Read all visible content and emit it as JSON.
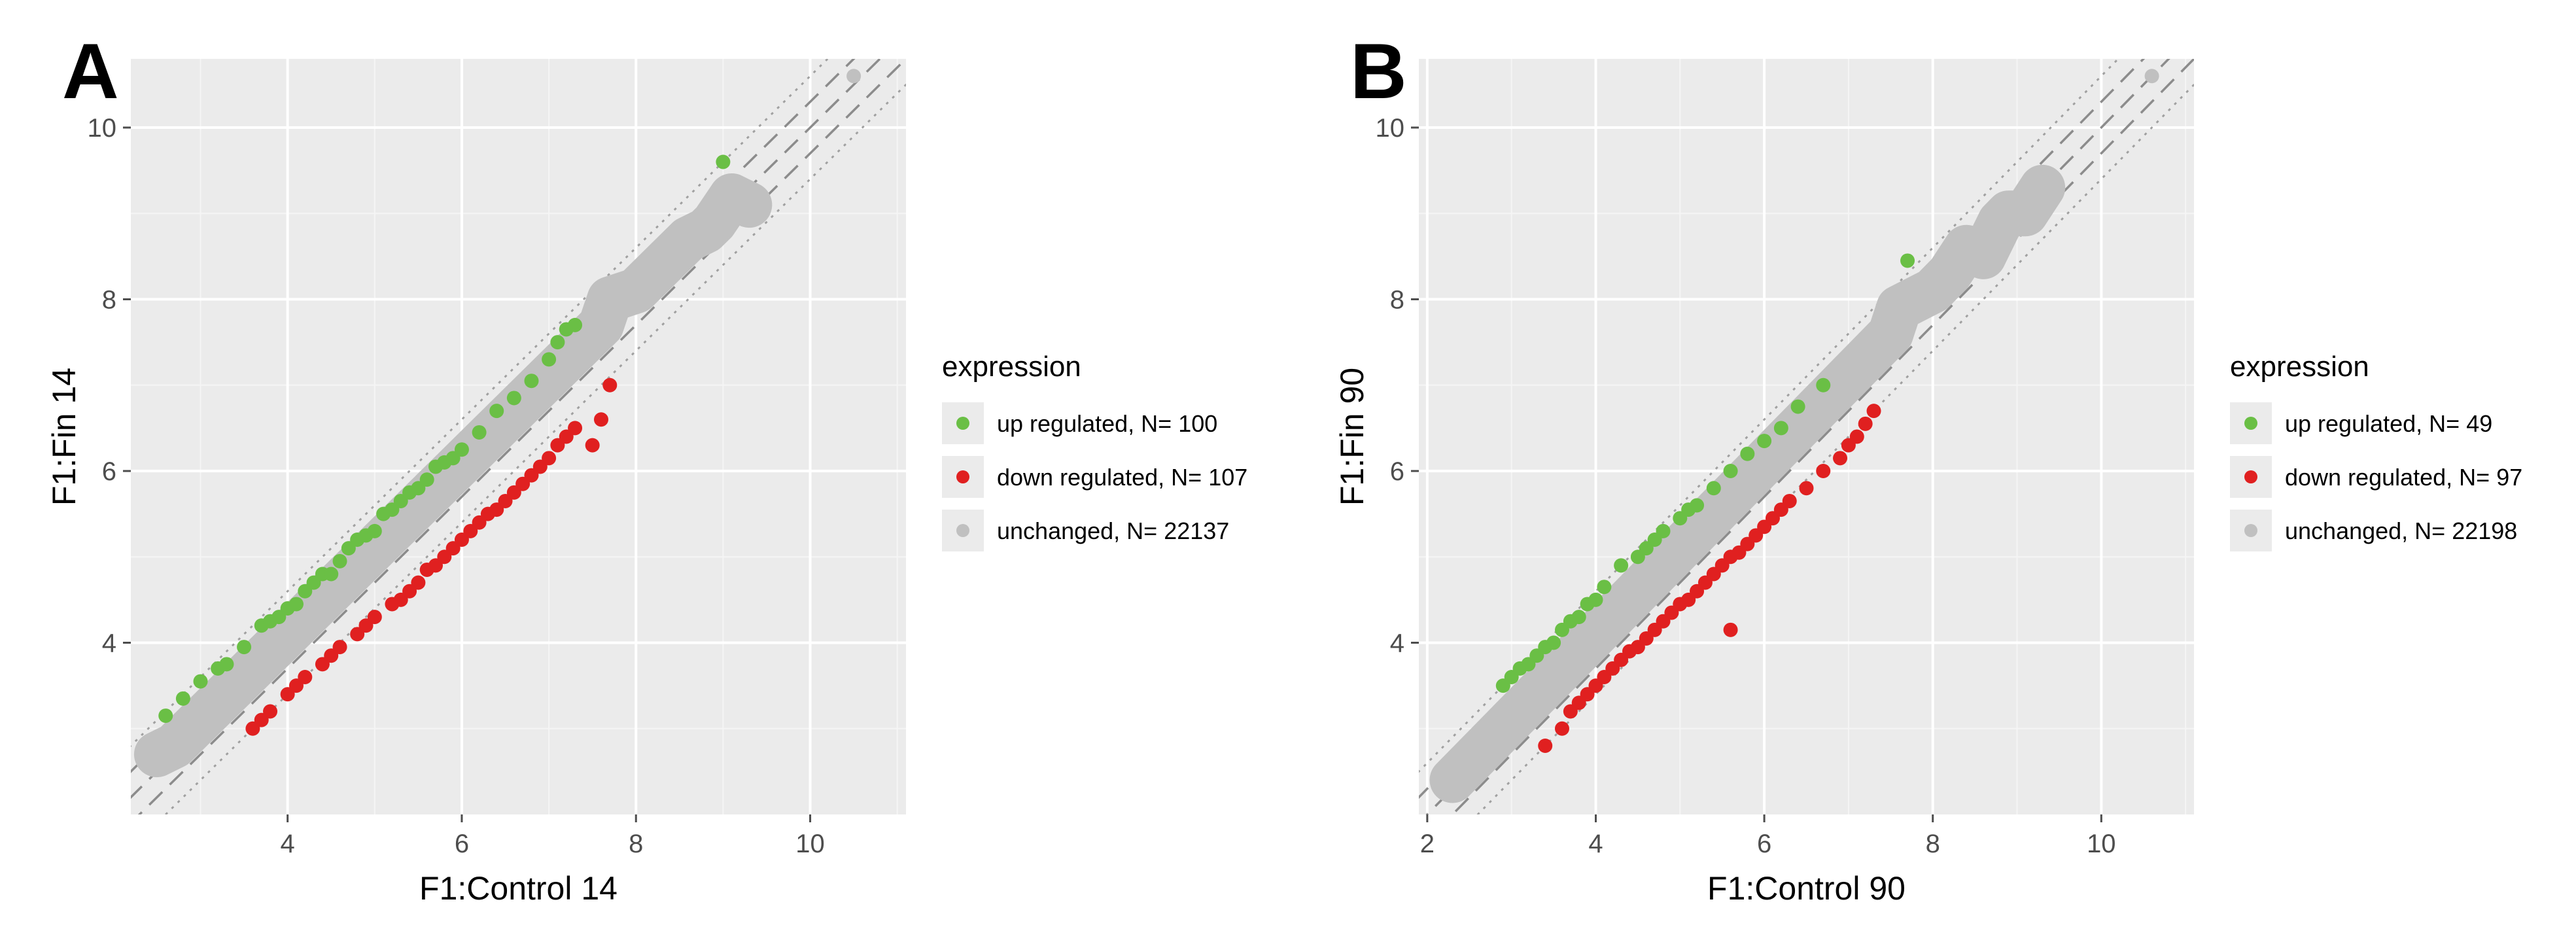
{
  "chart_data": [
    {
      "panel": "A",
      "type": "scatter",
      "xlabel": "F1:Control 14",
      "ylabel": "F1:Fin 14",
      "xlim": [
        2.2,
        11.1
      ],
      "ylim": [
        2.0,
        10.8
      ],
      "xticks": [
        4,
        6,
        8,
        10
      ],
      "yticks": [
        4,
        6,
        8,
        10
      ],
      "grid": true,
      "legend": {
        "position": "right",
        "title": "expression",
        "entries": [
          {
            "label": "up regulated, N= 100",
            "color": "#6abf45"
          },
          {
            "label": "down regulated, N= 107",
            "color": "#e02020"
          },
          {
            "label": "unchanged, N= 22137",
            "color": "#c0c0c0"
          }
        ]
      },
      "reference_lines": [
        {
          "intercept": 0,
          "style": "dashed"
        },
        {
          "intercept": 0.3,
          "style": "dashed"
        },
        {
          "intercept": -0.3,
          "style": "dashed"
        },
        {
          "intercept": 0.6,
          "style": "dotted"
        },
        {
          "intercept": -0.6,
          "style": "dotted"
        }
      ],
      "series": [
        {
          "name": "up regulated",
          "color": "#6abf45",
          "points": [
            [
              2.6,
              3.15
            ],
            [
              2.8,
              3.35
            ],
            [
              3.0,
              3.55
            ],
            [
              3.2,
              3.7
            ],
            [
              3.3,
              3.75
            ],
            [
              3.5,
              3.95
            ],
            [
              3.7,
              4.2
            ],
            [
              3.8,
              4.25
            ],
            [
              3.9,
              4.3
            ],
            [
              4.0,
              4.4
            ],
            [
              4.1,
              4.45
            ],
            [
              4.2,
              4.6
            ],
            [
              4.3,
              4.7
            ],
            [
              4.4,
              4.8
            ],
            [
              4.5,
              4.8
            ],
            [
              4.6,
              4.95
            ],
            [
              4.7,
              5.1
            ],
            [
              4.8,
              5.2
            ],
            [
              4.9,
              5.25
            ],
            [
              5.0,
              5.3
            ],
            [
              5.1,
              5.5
            ],
            [
              5.2,
              5.55
            ],
            [
              5.3,
              5.65
            ],
            [
              5.4,
              5.75
            ],
            [
              5.5,
              5.8
            ],
            [
              5.6,
              5.9
            ],
            [
              5.7,
              6.05
            ],
            [
              5.8,
              6.1
            ],
            [
              5.9,
              6.15
            ],
            [
              6.0,
              6.25
            ],
            [
              6.2,
              6.45
            ],
            [
              6.4,
              6.7
            ],
            [
              6.6,
              6.85
            ],
            [
              6.8,
              7.05
            ],
            [
              7.0,
              7.3
            ],
            [
              7.1,
              7.5
            ],
            [
              7.2,
              7.65
            ],
            [
              7.3,
              7.7
            ],
            [
              9.0,
              9.6
            ]
          ]
        },
        {
          "name": "down regulated",
          "color": "#e02020",
          "points": [
            [
              3.6,
              3.0
            ],
            [
              3.7,
              3.1
            ],
            [
              3.8,
              3.2
            ],
            [
              4.0,
              3.4
            ],
            [
              4.1,
              3.5
            ],
            [
              4.2,
              3.6
            ],
            [
              4.4,
              3.75
            ],
            [
              4.5,
              3.85
            ],
            [
              4.6,
              3.95
            ],
            [
              4.8,
              4.1
            ],
            [
              4.9,
              4.2
            ],
            [
              5.0,
              4.3
            ],
            [
              5.2,
              4.45
            ],
            [
              5.3,
              4.5
            ],
            [
              5.4,
              4.6
            ],
            [
              5.5,
              4.7
            ],
            [
              5.6,
              4.85
            ],
            [
              5.7,
              4.9
            ],
            [
              5.8,
              5.0
            ],
            [
              5.9,
              5.1
            ],
            [
              6.0,
              5.2
            ],
            [
              6.1,
              5.3
            ],
            [
              6.2,
              5.4
            ],
            [
              6.3,
              5.5
            ],
            [
              6.4,
              5.55
            ],
            [
              6.5,
              5.65
            ],
            [
              6.6,
              5.75
            ],
            [
              6.7,
              5.85
            ],
            [
              6.8,
              5.95
            ],
            [
              6.9,
              6.05
            ],
            [
              7.0,
              6.15
            ],
            [
              7.1,
              6.3
            ],
            [
              7.2,
              6.4
            ],
            [
              7.3,
              6.5
            ],
            [
              7.5,
              6.3
            ],
            [
              7.6,
              6.6
            ],
            [
              7.7,
              7.0
            ]
          ]
        },
        {
          "name": "unchanged",
          "color": "#c0c0c0",
          "points": [
            [
              2.5,
              2.7
            ],
            [
              2.7,
              2.8
            ],
            [
              2.9,
              3.0
            ],
            [
              3.0,
              3.1
            ],
            [
              3.2,
              3.3
            ],
            [
              3.4,
              3.5
            ],
            [
              3.6,
              3.7
            ],
            [
              3.8,
              3.9
            ],
            [
              4.0,
              4.1
            ],
            [
              4.2,
              4.3
            ],
            [
              4.4,
              4.5
            ],
            [
              4.6,
              4.7
            ],
            [
              4.8,
              4.9
            ],
            [
              5.0,
              5.1
            ],
            [
              5.2,
              5.3
            ],
            [
              5.4,
              5.5
            ],
            [
              5.6,
              5.7
            ],
            [
              5.8,
              5.9
            ],
            [
              6.0,
              6.1
            ],
            [
              6.2,
              6.3
            ],
            [
              6.4,
              6.5
            ],
            [
              6.6,
              6.7
            ],
            [
              6.8,
              6.9
            ],
            [
              7.0,
              7.1
            ],
            [
              7.2,
              7.3
            ],
            [
              7.4,
              7.5
            ],
            [
              7.6,
              7.7
            ],
            [
              7.7,
              8.0
            ],
            [
              8.0,
              8.1
            ],
            [
              8.2,
              8.3
            ],
            [
              8.3,
              8.4
            ],
            [
              8.5,
              8.6
            ],
            [
              8.6,
              8.7
            ],
            [
              8.8,
              8.8
            ],
            [
              8.9,
              8.9
            ],
            [
              9.1,
              9.2
            ],
            [
              9.3,
              9.1
            ],
            [
              10.5,
              10.6
            ]
          ]
        }
      ]
    },
    {
      "panel": "B",
      "type": "scatter",
      "xlabel": "F1:Control 90",
      "ylabel": "F1:Fin 90",
      "xlim": [
        1.9,
        11.1
      ],
      "ylim": [
        2.0,
        10.8
      ],
      "xticks": [
        2,
        4,
        6,
        8,
        10
      ],
      "yticks": [
        4,
        6,
        8,
        10
      ],
      "grid": true,
      "legend": {
        "position": "right",
        "title": "expression",
        "entries": [
          {
            "label": "up regulated, N= 49",
            "color": "#6abf45"
          },
          {
            "label": "down regulated, N= 97",
            "color": "#e02020"
          },
          {
            "label": "unchanged, N= 22198",
            "color": "#c0c0c0"
          }
        ]
      },
      "reference_lines": [
        {
          "intercept": 0,
          "style": "dashed"
        },
        {
          "intercept": 0.3,
          "style": "dashed"
        },
        {
          "intercept": -0.3,
          "style": "dashed"
        },
        {
          "intercept": 0.6,
          "style": "dotted"
        },
        {
          "intercept": -0.6,
          "style": "dotted"
        }
      ],
      "series": [
        {
          "name": "up regulated",
          "color": "#6abf45",
          "points": [
            [
              2.9,
              3.5
            ],
            [
              3.0,
              3.6
            ],
            [
              3.1,
              3.7
            ],
            [
              3.2,
              3.75
            ],
            [
              3.3,
              3.85
            ],
            [
              3.4,
              3.95
            ],
            [
              3.5,
              4.0
            ],
            [
              3.6,
              4.15
            ],
            [
              3.7,
              4.25
            ],
            [
              3.8,
              4.3
            ],
            [
              3.9,
              4.45
            ],
            [
              4.0,
              4.5
            ],
            [
              4.1,
              4.65
            ],
            [
              4.3,
              4.9
            ],
            [
              4.5,
              5.0
            ],
            [
              4.6,
              5.1
            ],
            [
              4.7,
              5.2
            ],
            [
              4.8,
              5.3
            ],
            [
              5.0,
              5.45
            ],
            [
              5.1,
              5.55
            ],
            [
              5.2,
              5.6
            ],
            [
              5.4,
              5.8
            ],
            [
              5.6,
              6.0
            ],
            [
              5.8,
              6.2
            ],
            [
              6.0,
              6.35
            ],
            [
              6.2,
              6.5
            ],
            [
              6.4,
              6.75
            ],
            [
              6.7,
              7.0
            ],
            [
              7.7,
              8.45
            ]
          ]
        },
        {
          "name": "down regulated",
          "color": "#e02020",
          "points": [
            [
              3.4,
              2.8
            ],
            [
              3.6,
              3.0
            ],
            [
              3.7,
              3.2
            ],
            [
              3.8,
              3.3
            ],
            [
              3.9,
              3.4
            ],
            [
              4.0,
              3.5
            ],
            [
              4.1,
              3.6
            ],
            [
              4.2,
              3.7
            ],
            [
              4.3,
              3.8
            ],
            [
              4.4,
              3.9
            ],
            [
              4.5,
              3.95
            ],
            [
              4.6,
              4.05
            ],
            [
              4.7,
              4.15
            ],
            [
              4.8,
              4.25
            ],
            [
              4.9,
              4.35
            ],
            [
              5.0,
              4.45
            ],
            [
              5.1,
              4.5
            ],
            [
              5.2,
              4.6
            ],
            [
              5.3,
              4.7
            ],
            [
              5.4,
              4.8
            ],
            [
              5.5,
              4.9
            ],
            [
              5.6,
              5.0
            ],
            [
              5.7,
              5.05
            ],
            [
              5.8,
              5.15
            ],
            [
              5.9,
              5.25
            ],
            [
              6.0,
              5.35
            ],
            [
              6.1,
              5.45
            ],
            [
              6.2,
              5.55
            ],
            [
              6.3,
              5.65
            ],
            [
              6.5,
              5.8
            ],
            [
              6.7,
              6.0
            ],
            [
              6.9,
              6.15
            ],
            [
              7.0,
              6.3
            ],
            [
              7.1,
              6.4
            ],
            [
              7.2,
              6.55
            ],
            [
              7.3,
              6.7
            ],
            [
              5.6,
              4.15
            ]
          ]
        },
        {
          "name": "unchanged",
          "color": "#c0c0c0",
          "points": [
            [
              2.3,
              2.4
            ],
            [
              2.5,
              2.6
            ],
            [
              2.7,
              2.8
            ],
            [
              2.9,
              3.0
            ],
            [
              3.1,
              3.2
            ],
            [
              3.3,
              3.4
            ],
            [
              3.5,
              3.6
            ],
            [
              3.7,
              3.8
            ],
            [
              3.9,
              4.0
            ],
            [
              4.1,
              4.2
            ],
            [
              4.3,
              4.4
            ],
            [
              4.5,
              4.6
            ],
            [
              4.7,
              4.8
            ],
            [
              4.9,
              5.0
            ],
            [
              5.1,
              5.2
            ],
            [
              5.3,
              5.4
            ],
            [
              5.5,
              5.6
            ],
            [
              5.7,
              5.8
            ],
            [
              5.9,
              6.0
            ],
            [
              6.1,
              6.2
            ],
            [
              6.3,
              6.4
            ],
            [
              6.5,
              6.6
            ],
            [
              6.7,
              6.8
            ],
            [
              6.9,
              7.0
            ],
            [
              7.1,
              7.2
            ],
            [
              7.3,
              7.4
            ],
            [
              7.5,
              7.6
            ],
            [
              7.6,
              7.9
            ],
            [
              7.8,
              8.0
            ],
            [
              8.0,
              8.1
            ],
            [
              8.2,
              8.3
            ],
            [
              8.4,
              8.6
            ],
            [
              8.6,
              8.5
            ],
            [
              8.8,
              8.9
            ],
            [
              8.9,
              9.0
            ],
            [
              9.1,
              9.0
            ],
            [
              9.3,
              9.3
            ],
            [
              10.6,
              10.6
            ]
          ]
        }
      ]
    }
  ]
}
